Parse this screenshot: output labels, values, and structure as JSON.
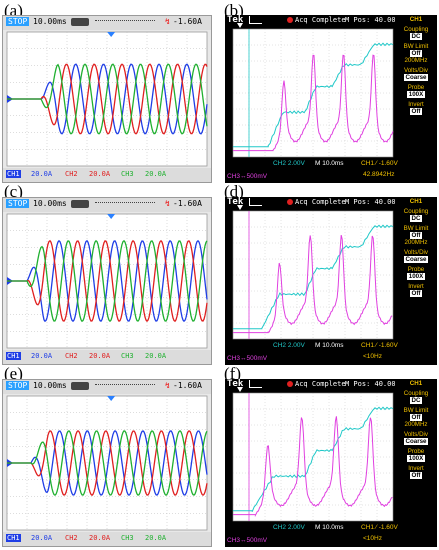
{
  "labels": [
    "(a)",
    "(b)",
    "(c)",
    "(d)",
    "(e)",
    "(f)"
  ],
  "left_scope": {
    "stop": "STOP",
    "timebase": "10.00ms",
    "trig": "-1.60A",
    "ch1": "CH1",
    "ch2": "CH2",
    "ch3": "CH3",
    "scale": "20.0A",
    "colors": {
      "ch1": "#1f3ee6",
      "ch2": "#e02020",
      "ch3": "#20b030"
    }
  },
  "right_scope": {
    "brand": "Tek",
    "status": "Acq Complete",
    "mpos": "M Pos: 40.00ms",
    "ch1_label": "CH1",
    "ch2": "CH2",
    "ch2_scale": "2.00V",
    "timebase": "M 10.0ms",
    "ch1_trig": "CH1 ∕ -1.60V",
    "ch3": "CH3",
    "ch3_scale": "500mV",
    "freq_b": "42.8942Hz",
    "freq_d": "<10Hz",
    "freq_f": "<10Hz",
    "menu": {
      "coupling": "Coupling",
      "coupling_val": "DC",
      "bw": "BW Limit",
      "bw_val": "Off",
      "bw_sub": "200MHz",
      "volts": "Volts/Div",
      "volts_val": "Coarse",
      "probe": "Probe",
      "probe_val": "100X",
      "invert": "Invert",
      "invert_val": "Off"
    },
    "colors": {
      "ch2": "#20c8c8",
      "ch3": "#e040e0"
    }
  },
  "chart_data": [
    {
      "panel": "(a)",
      "type": "line",
      "note_amplitude_div": 1.5,
      "period_div": 0.5,
      "start_div": 3.5,
      "series": [
        {
          "name": "CH1",
          "values": []
        },
        {
          "name": "CH2",
          "values": []
        },
        {
          "name": "CH3",
          "values": []
        }
      ]
    },
    {
      "panel": "(b)",
      "type": "line",
      "series": [
        {
          "name": "CH2"
        },
        {
          "name": "CH3"
        }
      ]
    },
    {
      "panel": "(c)",
      "type": "line",
      "series": [
        {
          "name": "CH1"
        },
        {
          "name": "CH2"
        },
        {
          "name": "CH3"
        }
      ]
    },
    {
      "panel": "(d)",
      "type": "line",
      "series": [
        {
          "name": "CH2"
        },
        {
          "name": "CH3"
        }
      ]
    },
    {
      "panel": "(e)",
      "type": "line",
      "series": [
        {
          "name": "CH1"
        },
        {
          "name": "CH2"
        },
        {
          "name": "CH3"
        }
      ]
    },
    {
      "panel": "(f)",
      "type": "line",
      "series": [
        {
          "name": "CH2"
        },
        {
          "name": "CH3"
        }
      ]
    }
  ]
}
